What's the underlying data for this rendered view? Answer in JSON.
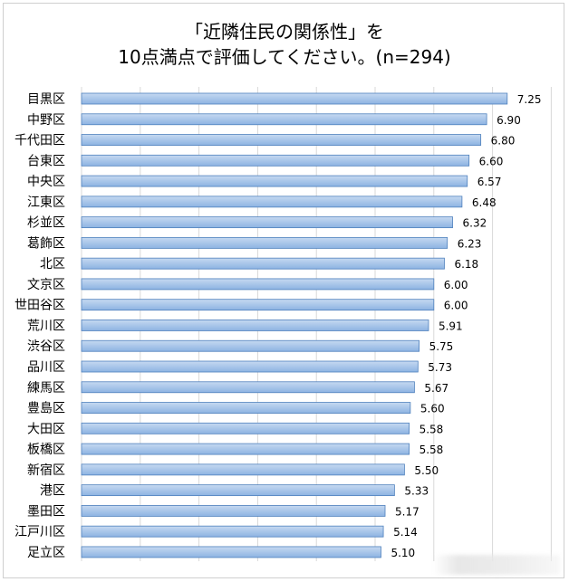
{
  "title_line1": "「近隣住民の関係性」を",
  "title_line2": "10点満点で評価してください。(n=294)",
  "colors": {
    "bar_fill_top": "#c6d9f1",
    "bar_fill_bottom": "#8db3e2",
    "bar_stroke": "#4f81bd",
    "grid": "#d9d9d9"
  },
  "chart_data": {
    "type": "bar",
    "orientation": "horizontal",
    "categories": [
      "目黒区",
      "中野区",
      "千代田区",
      "台東区",
      "中央区",
      "江東区",
      "杉並区",
      "葛飾区",
      "北区",
      "文京区",
      "世田谷区",
      "荒川区",
      "渋谷区",
      "品川区",
      "練馬区",
      "豊島区",
      "大田区",
      "板橋区",
      "新宿区",
      "港区",
      "墨田区",
      "江戸川区",
      "足立区"
    ],
    "values": [
      7.25,
      6.9,
      6.8,
      6.6,
      6.57,
      6.48,
      6.32,
      6.23,
      6.18,
      6.0,
      6.0,
      5.91,
      5.75,
      5.73,
      5.67,
      5.6,
      5.58,
      5.58,
      5.5,
      5.33,
      5.17,
      5.14,
      5.1
    ],
    "value_labels": [
      "7.25",
      "6.90",
      "6.80",
      "6.60",
      "6.57",
      "6.48",
      "6.32",
      "6.23",
      "6.18",
      "6.00",
      "6.00",
      "5.91",
      "5.75",
      "5.73",
      "5.67",
      "5.60",
      "5.58",
      "5.58",
      "5.50",
      "5.33",
      "5.17",
      "5.14",
      "5.10"
    ],
    "xlim": [
      0,
      8
    ],
    "grid": true,
    "axis_tick_labels_visible": false,
    "legend": "none"
  }
}
